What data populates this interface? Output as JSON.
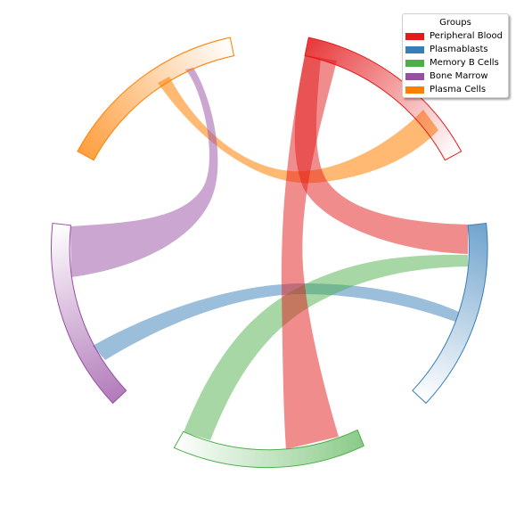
{
  "legend": {
    "title": "Groups",
    "items": [
      {
        "label": "Peripheral Blood",
        "color": "#e41a1c"
      },
      {
        "label": "Plasmablasts",
        "color": "#377eb8"
      },
      {
        "label": "Memory B Cells",
        "color": "#4daf4a"
      },
      {
        "label": "Bone Marrow",
        "color": "#984ea3"
      },
      {
        "label": "Plasma Cells",
        "color": "#ff7f00"
      }
    ]
  },
  "chart_data": {
    "type": "chord",
    "groups": [
      {
        "name": "Peripheral Blood",
        "color": "#e41a1c"
      },
      {
        "name": "Plasmablasts",
        "color": "#377eb8"
      },
      {
        "name": "Memory B Cells",
        "color": "#4daf4a"
      },
      {
        "name": "Bone Marrow",
        "color": "#984ea3"
      },
      {
        "name": "Plasma Cells",
        "color": "#ff7f00"
      }
    ],
    "links": [
      {
        "source": "Peripheral Blood",
        "target": "Memory B Cells",
        "color": "#e41a1c"
      },
      {
        "source": "Peripheral Blood",
        "target": "Plasmablasts",
        "color": "#e41a1c"
      },
      {
        "source": "Plasmablasts",
        "target": "Bone Marrow",
        "color": "#377eb8"
      },
      {
        "source": "Memory B Cells",
        "target": "Plasmablasts",
        "color": "#4daf4a"
      },
      {
        "source": "Bone Marrow",
        "target": "Bone Marrow",
        "color": "#984ea3"
      },
      {
        "source": "Plasma Cells",
        "target": "Peripheral Blood",
        "color": "#ff7f00"
      }
    ],
    "legend_position": "top-right"
  }
}
